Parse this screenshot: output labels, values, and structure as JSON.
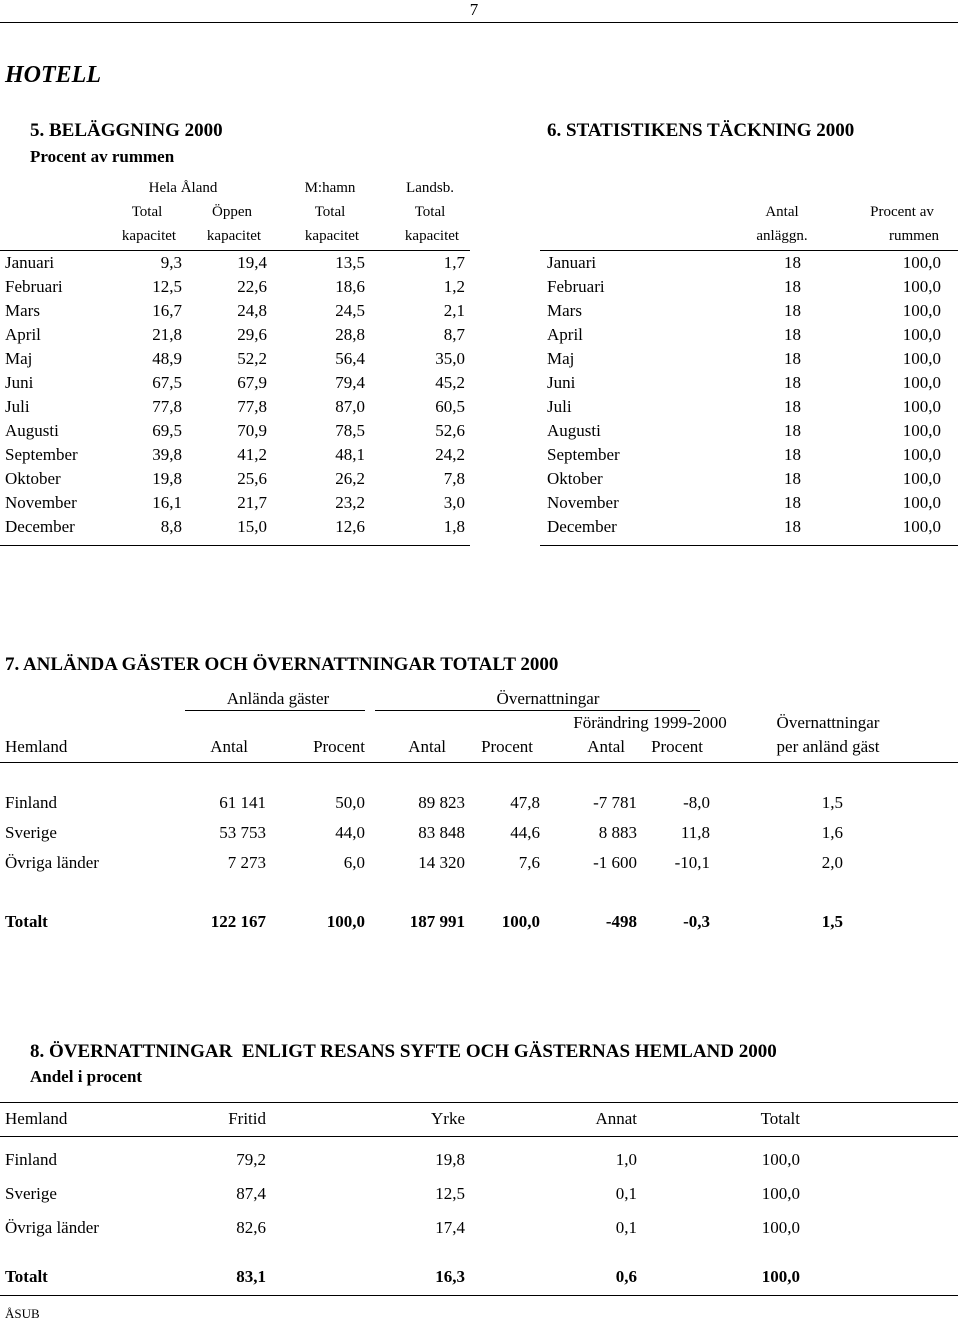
{
  "page_number": "7",
  "title": "HOTELL",
  "section5": {
    "heading": "5. BELÄGGNING 2000",
    "subheading": "Procent av rummen",
    "group_headers": [
      "Hela Åland",
      "M:hamn",
      "Landsb."
    ],
    "headers": [
      [
        "Total",
        "Öppen",
        "Total",
        "Total"
      ],
      [
        "kapacitet",
        "kapacitet",
        "kapacitet",
        "kapacitet"
      ]
    ],
    "rows": [
      [
        "Januari",
        "9,3",
        "19,4",
        "13,5",
        "1,7"
      ],
      [
        "Februari",
        "12,5",
        "22,6",
        "18,6",
        "1,2"
      ],
      [
        "Mars",
        "16,7",
        "24,8",
        "24,5",
        "2,1"
      ],
      [
        "April",
        "21,8",
        "29,6",
        "28,8",
        "8,7"
      ],
      [
        "Maj",
        "48,9",
        "52,2",
        "56,4",
        "35,0"
      ],
      [
        "Juni",
        "67,5",
        "67,9",
        "79,4",
        "45,2"
      ],
      [
        "Juli",
        "77,8",
        "77,8",
        "87,0",
        "60,5"
      ],
      [
        "Augusti",
        "69,5",
        "70,9",
        "78,5",
        "52,6"
      ],
      [
        "September",
        "39,8",
        "41,2",
        "48,1",
        "24,2"
      ],
      [
        "Oktober",
        "19,8",
        "25,6",
        "26,2",
        "7,8"
      ],
      [
        "November",
        "16,1",
        "21,7",
        "23,2",
        "3,0"
      ],
      [
        "December",
        "8,8",
        "15,0",
        "12,6",
        "1,8"
      ]
    ]
  },
  "section6": {
    "heading": "6. STATISTIKENS TÄCKNING 2000",
    "headers": [
      [
        "Antal",
        "Procent av"
      ],
      [
        "anläggn.",
        "rummen"
      ]
    ],
    "rows": [
      [
        "Januari",
        "18",
        "100,0"
      ],
      [
        "Februari",
        "18",
        "100,0"
      ],
      [
        "Mars",
        "18",
        "100,0"
      ],
      [
        "April",
        "18",
        "100,0"
      ],
      [
        "Maj",
        "18",
        "100,0"
      ],
      [
        "Juni",
        "18",
        "100,0"
      ],
      [
        "Juli",
        "18",
        "100,0"
      ],
      [
        "Augusti",
        "18",
        "100,0"
      ],
      [
        "September",
        "18",
        "100,0"
      ],
      [
        "Oktober",
        "18",
        "100,0"
      ],
      [
        "November",
        "18",
        "100,0"
      ],
      [
        "December",
        "18",
        "100,0"
      ]
    ]
  },
  "section7": {
    "heading": "7. ANLÄNDA GÄSTER OCH ÖVERNATTNINGAR TOTALT 2000",
    "group_headers": [
      "Anlända gäster",
      "Övernattningar"
    ],
    "sub_headers": [
      "Förändring 1999-2000",
      "Övernattningar"
    ],
    "headers": [
      "Hemland",
      "Antal",
      "Procent",
      "Antal",
      "Procent",
      "Antal",
      "Procent",
      "per anländ gäst"
    ],
    "rows": [
      [
        "Finland",
        "61 141",
        "50,0",
        "89 823",
        "47,8",
        "-7 781",
        "-8,0",
        "1,5"
      ],
      [
        "Sverige",
        "53 753",
        "44,0",
        "83 848",
        "44,6",
        "8 883",
        "11,8",
        "1,6"
      ],
      [
        "Övriga länder",
        "7 273",
        "6,0",
        "14 320",
        "7,6",
        "-1 600",
        "-10,1",
        "2,0"
      ]
    ],
    "total": [
      "Totalt",
      "122 167",
      "100,0",
      "187 991",
      "100,0",
      "-498",
      "-0,3",
      "1,5"
    ]
  },
  "section8": {
    "heading": "8. ÖVERNATTNINGAR  ENLIGT RESANS SYFTE OCH GÄSTERNAS HEMLAND 2000",
    "subheading": "Andel i procent",
    "headers": [
      "Hemland",
      "Fritid",
      "Yrke",
      "Annat",
      "Totalt"
    ],
    "rows": [
      [
        "Finland",
        "79,2",
        "19,8",
        "1,0",
        "100,0"
      ],
      [
        "Sverige",
        "87,4",
        "12,5",
        "0,1",
        "100,0"
      ],
      [
        "Övriga länder",
        "82,6",
        "17,4",
        "0,1",
        "100,0"
      ]
    ],
    "total": [
      "Totalt",
      "83,1",
      "16,3",
      "0,6",
      "100,0"
    ]
  },
  "footer": "ÅSUB"
}
